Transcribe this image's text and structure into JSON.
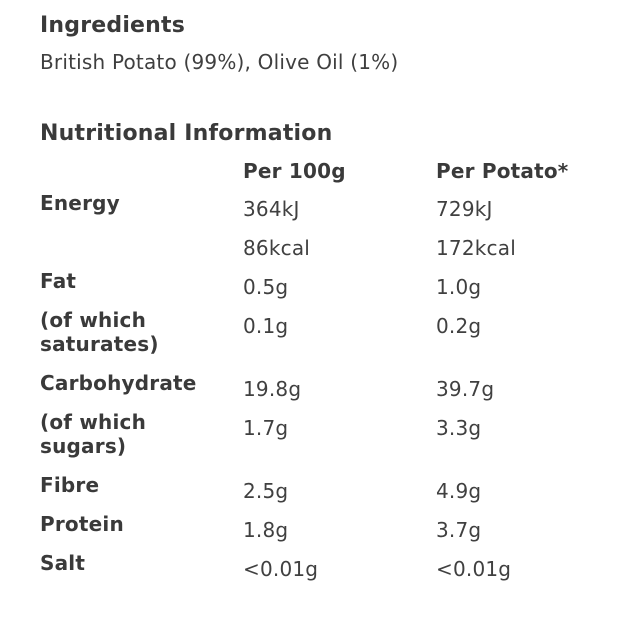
{
  "colors": {
    "background": "#ffffff",
    "text": "#3a3a3a"
  },
  "ingredients": {
    "title": "Ingredients",
    "text": "British Potato (99%), Olive Oil (1%)"
  },
  "nutrition": {
    "title": "Nutritional Information",
    "columns": {
      "label": "",
      "per100g": "Per 100g",
      "perPotato": "Per Potato*"
    },
    "rows": [
      {
        "label": "Energy",
        "per100g": "364kJ",
        "perPotato": "729kJ"
      },
      {
        "label": "",
        "per100g": "86kcal",
        "perPotato": "172kcal"
      },
      {
        "label": "Fat",
        "per100g": "0.5g",
        "perPotato": "1.0g"
      },
      {
        "label": "(of which saturates)",
        "per100g": "0.1g",
        "perPotato": "0.2g"
      },
      {
        "label": "Carbohydrate",
        "per100g": "19.8g",
        "perPotato": "39.7g"
      },
      {
        "label": "(of which sugars)",
        "per100g": "1.7g",
        "perPotato": "3.3g"
      },
      {
        "label": "Fibre",
        "per100g": "2.5g",
        "perPotato": "4.9g"
      },
      {
        "label": "Protein",
        "per100g": "1.8g",
        "perPotato": "3.7g"
      },
      {
        "label": "Salt",
        "per100g": "<0.01g",
        "perPotato": "<0.01g"
      }
    ]
  }
}
